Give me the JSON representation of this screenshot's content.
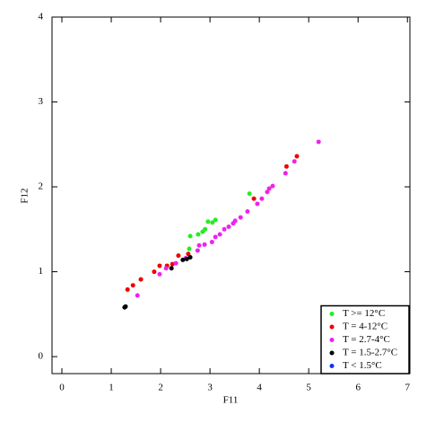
{
  "chart_data": {
    "type": "scatter",
    "x_label": "F11",
    "y_label": "F12",
    "xlim": [
      -0.2,
      7.05
    ],
    "ylim": [
      -0.2,
      4
    ],
    "xticks": [
      0,
      1,
      2,
      3,
      4,
      5,
      6,
      7
    ],
    "yticks": [
      0,
      1,
      2,
      3,
      4
    ],
    "legend_position": "lower right",
    "series": [
      {
        "name": "T >= 12°C",
        "color": "#22ee22",
        "x": [
          2.6,
          2.76,
          2.85,
          2.9,
          2.96,
          3.05,
          3.11,
          3.8,
          2.58
        ],
        "values": [
          1.42,
          1.44,
          1.47,
          1.5,
          1.59,
          1.58,
          1.61,
          1.92,
          1.27
        ]
      },
      {
        "name": "T = 4-12°C",
        "color": "#ee0000",
        "x": [
          1.33,
          1.44,
          1.6,
          1.87,
          1.98,
          2.13,
          2.24,
          2.36,
          2.56,
          3.89,
          4.55,
          4.76
        ],
        "values": [
          0.79,
          0.84,
          0.91,
          1.0,
          1.07,
          1.07,
          1.09,
          1.19,
          1.21,
          1.86,
          2.24,
          2.36
        ]
      },
      {
        "name": "T = 2.7-4°C",
        "color": "#ee22ee",
        "x": [
          1.53,
          1.98,
          2.11,
          2.31,
          2.51,
          2.75,
          2.89,
          3.04,
          3.11,
          3.2,
          3.29,
          3.38,
          3.51,
          3.62,
          3.76,
          3.96,
          4.05,
          4.16,
          4.2,
          4.27,
          4.53,
          4.71,
          5.2,
          2.78,
          3.47
        ],
        "values": [
          0.72,
          0.97,
          1.04,
          1.1,
          1.16,
          1.25,
          1.32,
          1.35,
          1.41,
          1.44,
          1.5,
          1.53,
          1.6,
          1.64,
          1.71,
          1.8,
          1.86,
          1.94,
          1.98,
          2.01,
          2.16,
          2.3,
          2.53,
          1.31,
          1.57
        ]
      },
      {
        "name": "T = 1.5-2.7°C",
        "color": "#000000",
        "x": [
          1.27,
          1.29,
          2.22,
          2.45,
          2.53,
          2.6
        ],
        "values": [
          0.58,
          0.59,
          1.04,
          1.14,
          1.15,
          1.17
        ]
      },
      {
        "name": "T < 1.5°C",
        "color": "#1133ee",
        "x": [],
        "values": []
      }
    ]
  }
}
